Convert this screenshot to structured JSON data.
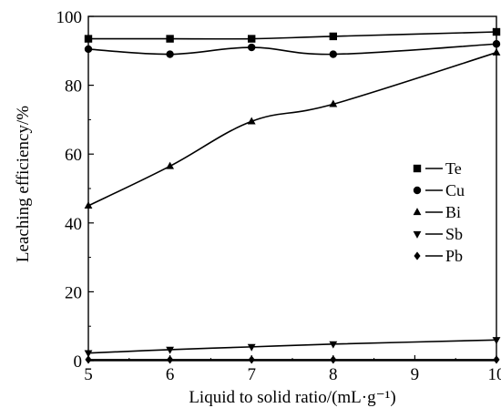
{
  "chart_data": {
    "type": "line",
    "title": "",
    "xlabel": "Liquid to solid ratio/(mL·g⁻¹)",
    "ylabel": "Leaching efficiency/%",
    "xlim": [
      5,
      10
    ],
    "ylim": [
      0,
      100
    ],
    "x_ticks": [
      5,
      6,
      7,
      8,
      9,
      10
    ],
    "y_ticks": [
      0,
      20,
      40,
      60,
      80,
      100
    ],
    "grid": false,
    "legend_position": "right",
    "x": [
      5,
      6,
      7,
      8,
      10
    ],
    "series": [
      {
        "name": "Te",
        "marker": "square",
        "values": [
          93.5,
          93.5,
          93.5,
          94.2,
          95.5
        ]
      },
      {
        "name": "Cu",
        "marker": "circle",
        "values": [
          90.5,
          89,
          91,
          89,
          92
        ]
      },
      {
        "name": "Bi",
        "marker": "triangle-up",
        "values": [
          45,
          56.5,
          69.5,
          74.5,
          89.5
        ]
      },
      {
        "name": "Sb",
        "marker": "triangle-down",
        "values": [
          2.2,
          3.2,
          4,
          4.8,
          6
        ]
      },
      {
        "name": "Pb",
        "marker": "diamond",
        "values": [
          0.3,
          0.3,
          0.3,
          0.3,
          0.3
        ]
      }
    ]
  }
}
